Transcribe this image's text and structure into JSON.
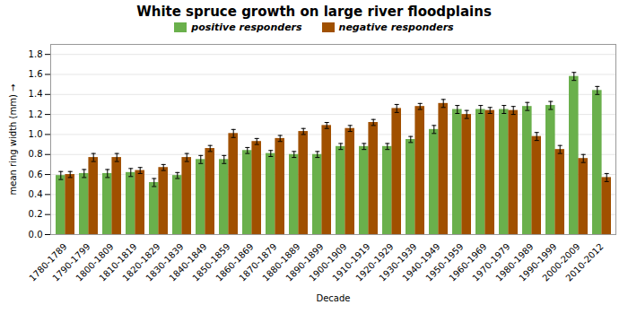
{
  "chart_data": {
    "type": "bar",
    "title": "White spruce growth on large river floodplains",
    "xlabel": "Decade",
    "ylabel": "mean ring width (mm)",
    "categories": [
      "1780-1789",
      "1790-1799",
      "1800-1809",
      "1810-1819",
      "1820-1829",
      "1830-1839",
      "1840-1849",
      "1850-1859",
      "1860-1869",
      "1870-1879",
      "1880-1889",
      "1890-1899",
      "1900-1909",
      "1910-1919",
      "1920-1929",
      "1930-1939",
      "1940-1949",
      "1950-1959",
      "1960-1969",
      "1970-1979",
      "1980-1989",
      "1990-1999",
      "2000-2009",
      "2010-2012"
    ],
    "series": [
      {
        "name": "positive responders",
        "color": "#6ab04c",
        "values": [
          0.59,
          0.61,
          0.61,
          0.62,
          0.52,
          0.59,
          0.75,
          0.75,
          0.84,
          0.81,
          0.8,
          0.8,
          0.88,
          0.88,
          0.88,
          0.95,
          1.05,
          1.25,
          1.25,
          1.25,
          1.28,
          1.29,
          1.58,
          1.44
        ],
        "errors": [
          0.04,
          0.04,
          0.04,
          0.04,
          0.04,
          0.03,
          0.04,
          0.04,
          0.03,
          0.03,
          0.03,
          0.03,
          0.03,
          0.03,
          0.03,
          0.03,
          0.04,
          0.04,
          0.04,
          0.04,
          0.04,
          0.04,
          0.04,
          0.04
        ]
      },
      {
        "name": "negative responders",
        "color": "#a05000",
        "values": [
          0.6,
          0.77,
          0.77,
          0.64,
          0.67,
          0.77,
          0.86,
          1.01,
          0.93,
          0.96,
          1.03,
          1.09,
          1.06,
          1.12,
          1.26,
          1.28,
          1.31,
          1.2,
          1.24,
          1.24,
          0.98,
          0.85,
          0.76,
          0.57
        ],
        "errors": [
          0.03,
          0.04,
          0.04,
          0.03,
          0.03,
          0.04,
          0.03,
          0.04,
          0.03,
          0.03,
          0.03,
          0.03,
          0.03,
          0.03,
          0.04,
          0.03,
          0.04,
          0.04,
          0.03,
          0.04,
          0.04,
          0.04,
          0.04,
          0.04
        ]
      }
    ],
    "ylim": [
      0.0,
      1.9
    ],
    "yticks": [
      {
        "value": 0.0,
        "label": "0.0"
      },
      0.2,
      0.4,
      0.6,
      0.8,
      {
        "value": 1.0,
        "label": "1.0"
      },
      1.2,
      1.4,
      1.6,
      1.8
    ],
    "grid": true,
    "legend": "top"
  }
}
